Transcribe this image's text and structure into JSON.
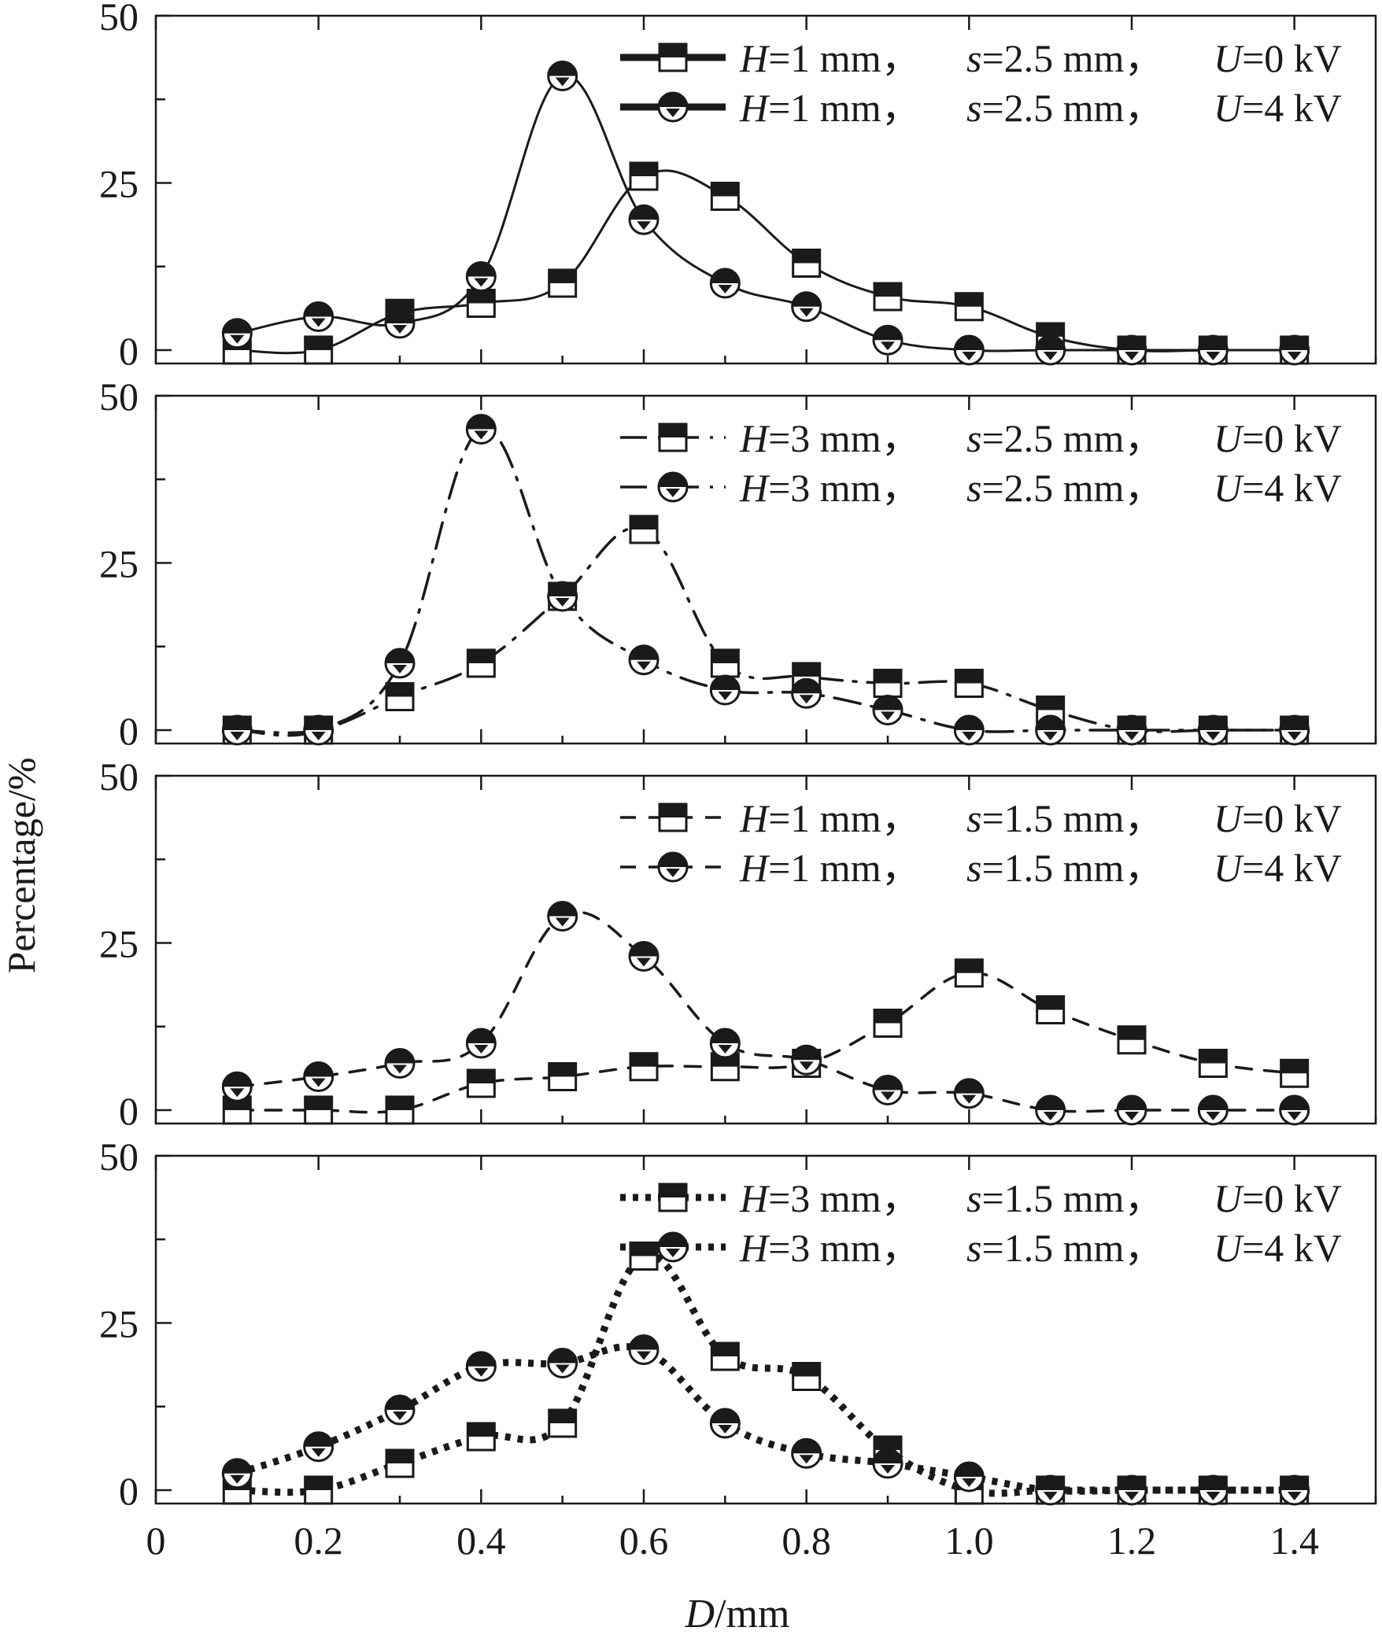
{
  "chart_data": {
    "type": "line",
    "ylabel": "Percentage/%",
    "xlabel_italic": "D",
    "xlabel_rest": "/mm",
    "xlim": [
      0,
      1.5
    ],
    "x_ticks": [
      0,
      0.2,
      0.4,
      0.6,
      0.8,
      1.0,
      1.2,
      1.4
    ],
    "x_tick_labels": [
      "0",
      "0.2",
      "0.4",
      "0.6",
      "0.8",
      "1.0",
      "1.2",
      "1.4"
    ],
    "y_ticks": [
      0,
      25,
      50
    ],
    "y_tick_labels": [
      "0",
      "25",
      "50"
    ],
    "ylim": [
      -2,
      50
    ],
    "x": [
      0.1,
      0.2,
      0.3,
      0.4,
      0.5,
      0.6,
      0.7,
      0.8,
      0.9,
      1.0,
      1.1,
      1.2,
      1.3,
      1.4
    ],
    "panels": [
      {
        "line_style": "solid",
        "series": [
          {
            "marker": "square",
            "legend": {
              "h": "1",
              "s": "2.5",
              "u": "0"
            },
            "values": [
              0,
              0,
              5.5,
              7,
              10,
              26,
              23,
              13,
              8,
              6.5,
              2,
              0,
              0,
              0
            ]
          },
          {
            "marker": "circle",
            "legend": {
              "h": "1",
              "s": "2.5",
              "u": "4"
            },
            "values": [
              2.5,
              5,
              4,
              11,
              41,
              19.5,
              10,
              6.5,
              1.5,
              0,
              0,
              0,
              0,
              0
            ]
          }
        ]
      },
      {
        "line_style": "dashdot",
        "series": [
          {
            "marker": "square",
            "legend": {
              "h": "3",
              "s": "2.5",
              "u": "0"
            },
            "values": [
              0,
              0,
              5,
              10,
              20,
              30,
              10,
              8,
              7,
              7,
              3,
              0,
              0,
              0
            ]
          },
          {
            "marker": "circle",
            "legend": {
              "h": "3",
              "s": "2.5",
              "u": "4"
            },
            "values": [
              0,
              0,
              10,
              45,
              20,
              10.5,
              6,
              5.5,
              3,
              0,
              0,
              0,
              0,
              0
            ]
          }
        ]
      },
      {
        "line_style": "dashed",
        "series": [
          {
            "marker": "square",
            "legend": {
              "h": "1",
              "s": "1.5",
              "u": "0"
            },
            "values": [
              0,
              0,
              0,
              4,
              5,
              6.5,
              6.5,
              7,
              13,
              20.5,
              15,
              10.5,
              7,
              5.5
            ]
          },
          {
            "marker": "circle",
            "legend": {
              "h": "1",
              "s": "1.5",
              "u": "4"
            },
            "values": [
              3.5,
              5,
              7,
              10,
              29,
              23,
              10,
              7.5,
              3,
              2.5,
              0,
              0,
              0,
              0
            ]
          }
        ]
      },
      {
        "line_style": "dotted",
        "series": [
          {
            "marker": "square",
            "legend": {
              "h": "3",
              "s": "1.5",
              "u": "0"
            },
            "values": [
              0,
              0,
              4,
              8,
              10,
              35,
              20,
              17,
              6,
              0,
              0,
              0,
              0,
              0
            ]
          },
          {
            "marker": "circle",
            "legend": {
              "h": "3",
              "s": "1.5",
              "u": "4"
            },
            "values": [
              2.5,
              6.5,
              12,
              18.5,
              19,
              21,
              10,
              5.5,
              4,
              2,
              0,
              0,
              0,
              0
            ]
          }
        ]
      }
    ],
    "legend_labels": {
      "h": "H",
      "s": "s",
      "u": "U",
      "mm": " mm，",
      "kv": " kV",
      "eq": "="
    }
  }
}
